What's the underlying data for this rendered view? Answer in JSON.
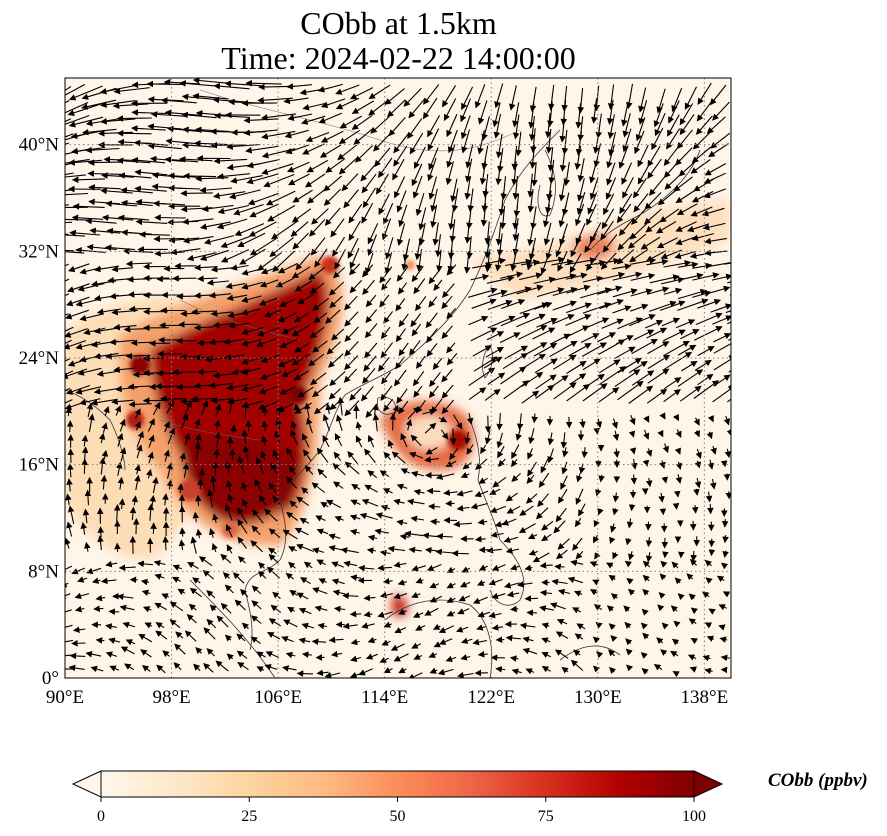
{
  "title": {
    "line1": "CObb at 1.5km",
    "line2": "Time: 2024-02-22 14:00:00"
  },
  "map": {
    "variable": "CObb",
    "level": "1.5km",
    "time": "2024-02-22 14:00:00",
    "lon_range": [
      90,
      140
    ],
    "lat_range": [
      0,
      45
    ],
    "lon_ticks": [
      "90°E",
      "98°E",
      "106°E",
      "114°E",
      "122°E",
      "130°E",
      "138°E"
    ],
    "lat_ticks": [
      "0°",
      "8°N",
      "16°N",
      "24°N",
      "32°N",
      "40°N"
    ],
    "gridlines": true,
    "colormap": "OrRd"
  },
  "colorbar": {
    "label": "CObb (ppbv)",
    "ticks": [
      "0",
      "25",
      "50",
      "75",
      "100"
    ],
    "range": [
      0,
      100
    ],
    "extend": "both",
    "colors": [
      "#fff7ec",
      "#fee8c8",
      "#fdd49e",
      "#fdbb84",
      "#fc8d59",
      "#ef6548",
      "#d7301f",
      "#b30000",
      "#7f0000"
    ]
  }
}
